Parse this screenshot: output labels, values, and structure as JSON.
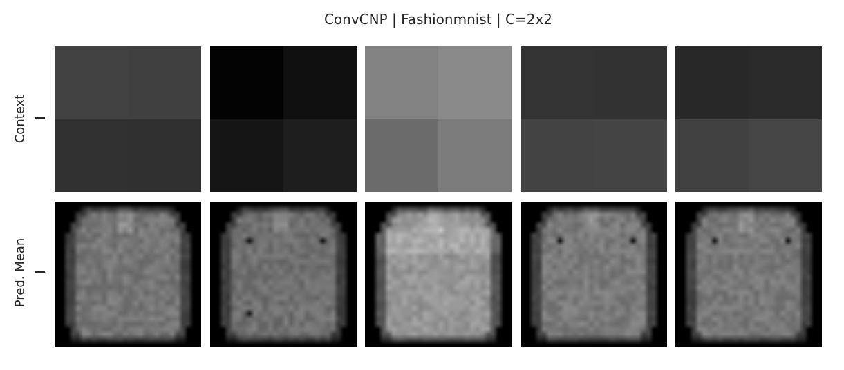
{
  "title": "ConvCNP | Fashionmnist | C=2x2",
  "rows": [
    {
      "label": "Context"
    },
    {
      "label": "Pred. Mean"
    }
  ],
  "context_grids": [
    [
      "#424242",
      "#404040",
      "#313131",
      "#303030"
    ],
    [
      "#030303",
      "#101010",
      "#151515",
      "#1e1e1e"
    ],
    [
      "#838383",
      "#8a8a8a",
      "#6b6b6b",
      "#7b7b7b"
    ],
    [
      "#333333",
      "#323232",
      "#434343",
      "#444444"
    ],
    [
      "#282828",
      "#2a2a2a",
      "#414141",
      "#454545"
    ]
  ]
}
